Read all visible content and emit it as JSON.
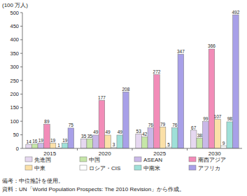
{
  "chart_data": {
    "type": "bar",
    "y_label": "(100 万人)",
    "categories": [
      "2015",
      "2020",
      "2025",
      "2030"
    ],
    "series": [
      {
        "name": "先進国",
        "color": "#e6d8f0",
        "values": [
          14,
          35,
          53,
          67
        ]
      },
      {
        "name": "中国",
        "color": "#c6e6a8",
        "values": [
          16,
          35,
          42,
          38
        ]
      },
      {
        "name": "ASEAN",
        "color": "#c9b8e8",
        "values": [
          19,
          49,
          76,
          99
        ]
      },
      {
        "name": "南西アジア",
        "color": "#f28cb8",
        "values": [
          89,
          177,
          272,
          366
        ]
      },
      {
        "name": "中東",
        "color": "#fbe0a8",
        "values": [
          19,
          49,
          79,
          107
        ]
      },
      {
        "name": "ロシア・CIS",
        "color": "#ffffff",
        "values": [
          1,
          3,
          5,
          9
        ]
      },
      {
        "name": "中南米",
        "color": "#9fe0d8",
        "values": [
          19,
          49,
          76,
          98
        ]
      },
      {
        "name": "アフリカ",
        "color": "#a8a0e8",
        "values": [
          75,
          208,
          347,
          492
        ]
      }
    ],
    "ylim": [
      0,
      500
    ],
    "yticks": [
      0,
      50,
      100,
      150,
      200,
      250,
      300,
      350,
      400,
      450,
      500
    ],
    "grid": false,
    "data_labels": true,
    "legend": "bottom",
    "notes": [
      "備考：中位推計を使用。",
      "資料：UN「World Population Prospects: The 2010 Revision」から作成。"
    ]
  }
}
